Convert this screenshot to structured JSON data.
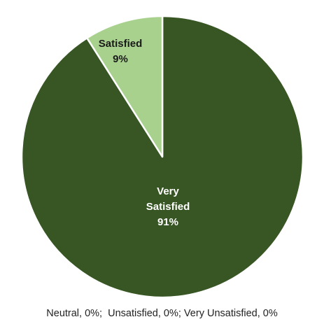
{
  "chart_data": {
    "type": "pie",
    "title": "",
    "slices": [
      {
        "name": "Very Satisfied",
        "label_lines": [
          "Very",
          "Satisfied",
          "91%"
        ],
        "value": 91,
        "color": "#375623",
        "label_color": "#ffffff"
      },
      {
        "name": "Satisfied",
        "label_lines": [
          "Satisfied",
          "9%"
        ],
        "value": 9,
        "color": "#a9d18e",
        "label_color": "#1a1a1a"
      }
    ],
    "footnote": "Neutral, 0%;  Unsatisfied, 0%; Very Unsatisfied, 0%",
    "start_angle_deg": 0,
    "direction": "clockwise",
    "slice_border_color": "#ffffff"
  }
}
